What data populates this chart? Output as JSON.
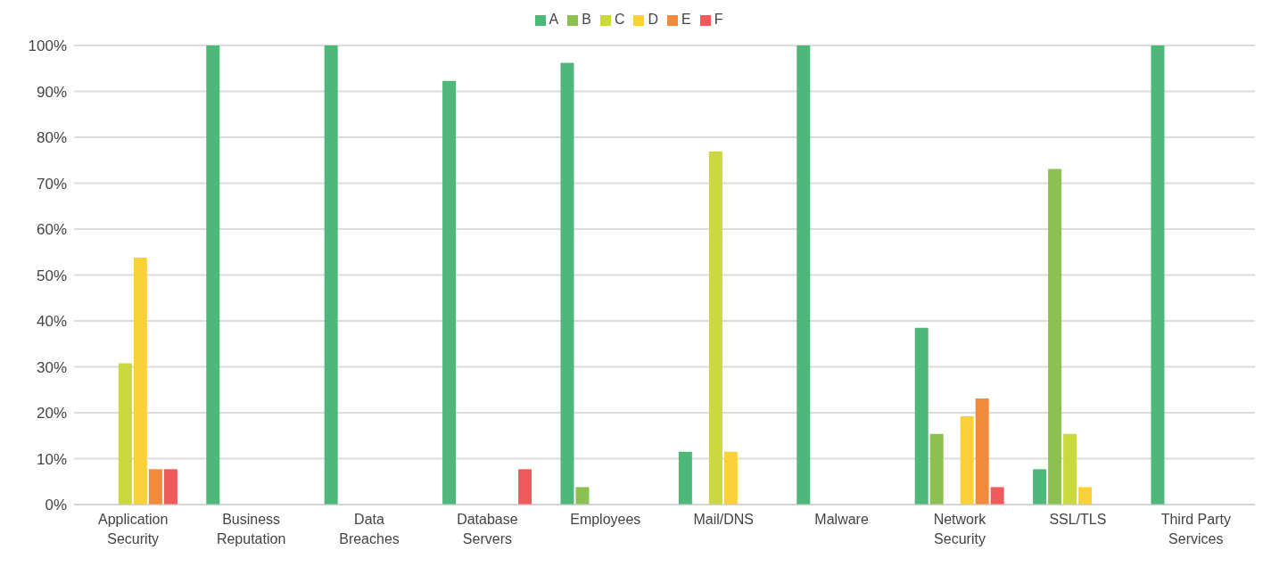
{
  "chart_data": {
    "type": "bar",
    "categories": [
      "Application\nSecurity",
      "Business\nReputation",
      "Data\nBreaches",
      "Database\nServers",
      "Employees",
      "Mail/DNS",
      "Malware",
      "Network\nSecurity",
      "SSL/TLS",
      "Third Party\nServices"
    ],
    "series": [
      {
        "name": "A",
        "color": "#4db87a",
        "values": [
          0,
          100,
          100,
          92.3,
          96.2,
          11.5,
          100,
          38.5,
          7.7,
          100
        ]
      },
      {
        "name": "B",
        "color": "#8cc152",
        "values": [
          0,
          0,
          0,
          0,
          3.8,
          0,
          0,
          15.4,
          73.1,
          0
        ]
      },
      {
        "name": "C",
        "color": "#cbd83e",
        "values": [
          30.8,
          0,
          0,
          0,
          0,
          76.9,
          0,
          0,
          15.4,
          0
        ]
      },
      {
        "name": "D",
        "color": "#fbd13a",
        "values": [
          53.8,
          0,
          0,
          0,
          0,
          11.5,
          0,
          19.2,
          3.8,
          0
        ]
      },
      {
        "name": "E",
        "color": "#f28a3b",
        "values": [
          7.7,
          0,
          0,
          0,
          0,
          0,
          0,
          23.1,
          0,
          0
        ]
      },
      {
        "name": "F",
        "color": "#ef5a5a",
        "values": [
          7.7,
          0,
          0,
          7.7,
          0,
          0,
          0,
          3.8,
          0,
          0
        ]
      }
    ],
    "ylim": [
      0,
      100
    ],
    "yticks": [
      {
        "value": 0,
        "label": "0%"
      },
      {
        "value": 10,
        "label": "10%"
      },
      {
        "value": 20,
        "label": "20%"
      },
      {
        "value": 30,
        "label": "30%"
      },
      {
        "value": 40,
        "label": "40%"
      },
      {
        "value": 50,
        "label": "50%"
      },
      {
        "value": 60,
        "label": "60%"
      },
      {
        "value": 70,
        "label": "70%"
      },
      {
        "value": 80,
        "label": "80%"
      },
      {
        "value": 90,
        "label": "90%"
      },
      {
        "value": 100,
        "label": "100%"
      }
    ],
    "grid": "y",
    "legend": "top"
  }
}
